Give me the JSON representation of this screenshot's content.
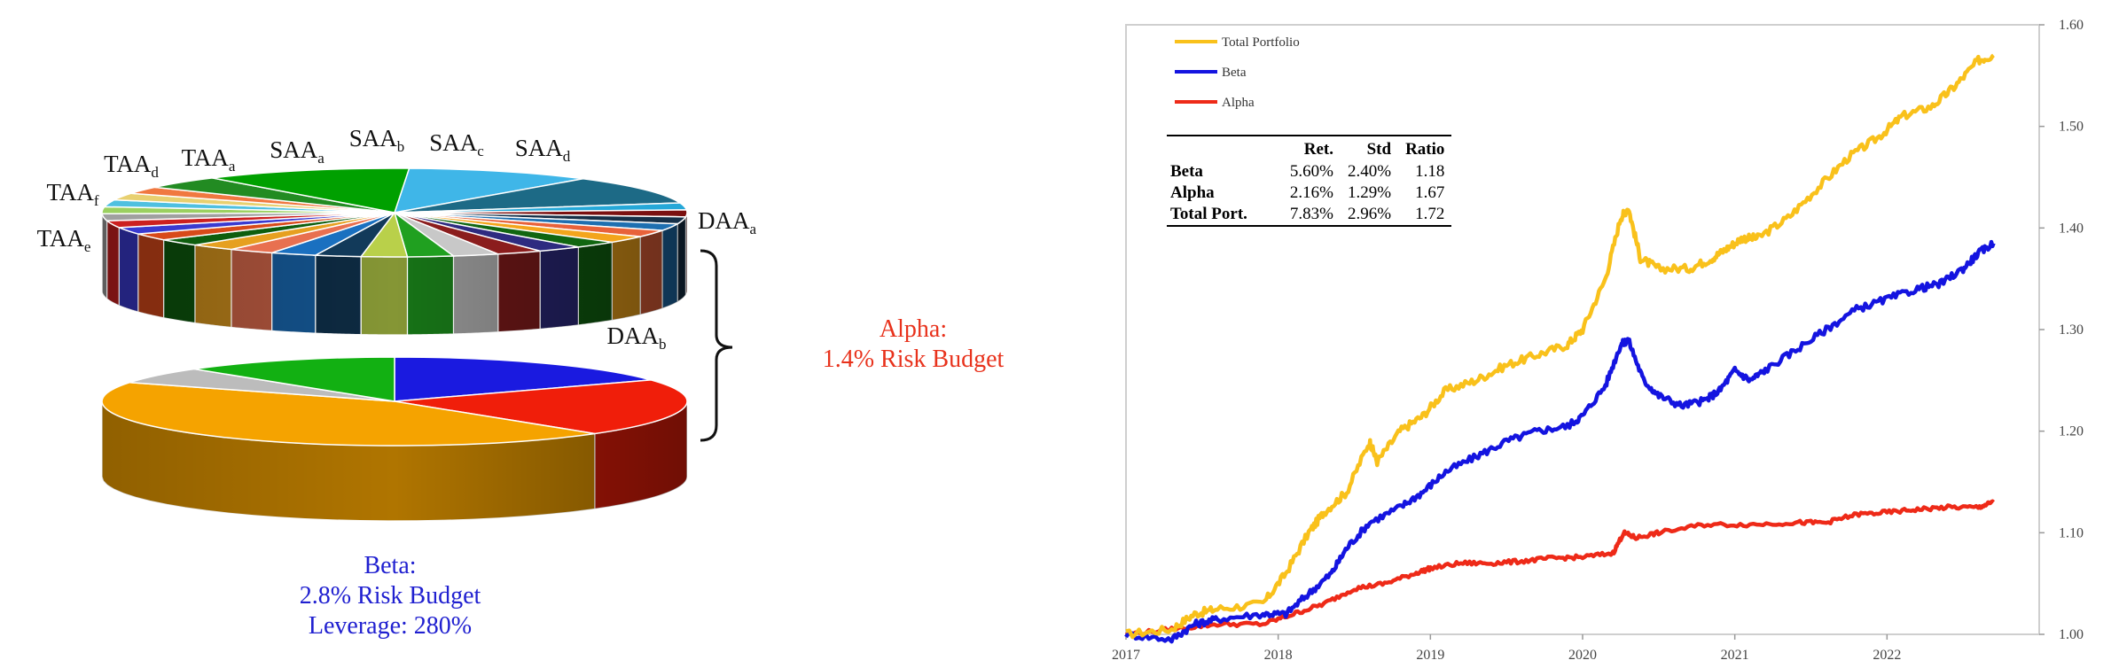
{
  "pie": {
    "top_labels": [
      {
        "base": "TAA",
        "sub": "d"
      },
      {
        "base": "TAA",
        "sub": "a"
      },
      {
        "base": "SAA",
        "sub": "a"
      },
      {
        "base": "SAA",
        "sub": "b"
      },
      {
        "base": "SAA",
        "sub": "c"
      },
      {
        "base": "SAA",
        "sub": "d"
      },
      {
        "base": "TAA",
        "sub": "f"
      },
      {
        "base": "TAA",
        "sub": "e"
      },
      {
        "base": "DAA",
        "sub": "a"
      },
      {
        "base": "DAA",
        "sub": "b"
      }
    ],
    "top_slice_colors": [
      "#3fb6e8",
      "#1d6a86",
      "#25a8d8",
      "#7b1010",
      "#163048",
      "#1e6fb0",
      "#e8623a",
      "#f3a51c",
      "#116611",
      "#2e2b80",
      "#8b1d1d",
      "#c8c8c8",
      "#20a020",
      "#b9d04a",
      "#123a5a",
      "#1a70c0",
      "#e87050",
      "#e6a020",
      "#0e5e0e",
      "#d84a1a",
      "#3a3ad0",
      "#cc2020",
      "#a0a0a0",
      "#9bd060",
      "#4fc0e0",
      "#e8d070",
      "#f07840",
      "#228b22",
      "#00a000"
    ],
    "bottom_slices": [
      {
        "name": "blue",
        "value": 17,
        "color": "#1a1ae0"
      },
      {
        "name": "red",
        "value": 21,
        "color": "#f01e0a"
      },
      {
        "name": "orange",
        "value": 44,
        "color": "#f5a300"
      },
      {
        "name": "gray",
        "value": 6,
        "color": "#bcbcbc"
      },
      {
        "name": "green",
        "value": 12,
        "color": "#12b012"
      }
    ]
  },
  "annotations": {
    "alpha_title": "Alpha:",
    "alpha_budget": "1.4% Risk Budget",
    "beta_title": "Beta:",
    "beta_budget": "2.8% Risk Budget",
    "beta_leverage": "Leverage: 280%"
  },
  "stats_table": {
    "headers": [
      "",
      "Ret.",
      "Std",
      "Ratio"
    ],
    "rows": [
      {
        "name": "Beta",
        "ret": "5.60%",
        "std": "2.40%",
        "ratio": "1.18"
      },
      {
        "name": "Alpha",
        "ret": "2.16%",
        "std": "1.29%",
        "ratio": "1.67"
      },
      {
        "name": "Total Port.",
        "ret": "7.83%",
        "std": "2.96%",
        "ratio": "1.72"
      }
    ]
  },
  "chart_data": {
    "type": "line",
    "title": "",
    "xlabel": "",
    "ylabel": "",
    "xlim": [
      2017.0,
      2023.0
    ],
    "ylim": [
      1.0,
      1.6
    ],
    "x_ticks": [
      "2017",
      "2018",
      "2019",
      "2020",
      "2021",
      "2022"
    ],
    "y_ticks": [
      "1.00",
      "1.10",
      "1.20",
      "1.30",
      "1.40",
      "1.50",
      "1.60"
    ],
    "legend": [
      "Total Portfolio",
      "Beta",
      "Alpha"
    ],
    "series": [
      {
        "name": "Total Portfolio",
        "color": "#f9c11b",
        "x": [
          2017.0,
          2017.3,
          2017.45,
          2017.6,
          2017.9,
          2018.05,
          2018.2,
          2018.3,
          2018.45,
          2018.6,
          2018.65,
          2018.8,
          2018.95,
          2019.1,
          2019.3,
          2019.5,
          2019.7,
          2019.9,
          2020.0,
          2020.15,
          2020.25,
          2020.3,
          2020.38,
          2020.5,
          2020.7,
          2020.85,
          2020.95,
          2021.05,
          2021.15,
          2021.35,
          2021.55,
          2021.75,
          2021.95,
          2022.1,
          2022.3,
          2022.45,
          2022.6,
          2022.7
        ],
        "y": [
          1.0,
          1.005,
          1.02,
          1.025,
          1.03,
          1.06,
          1.1,
          1.12,
          1.14,
          1.19,
          1.17,
          1.2,
          1.215,
          1.24,
          1.25,
          1.265,
          1.275,
          1.285,
          1.3,
          1.35,
          1.41,
          1.42,
          1.37,
          1.36,
          1.36,
          1.37,
          1.38,
          1.39,
          1.39,
          1.41,
          1.44,
          1.47,
          1.49,
          1.51,
          1.52,
          1.54,
          1.565,
          1.57
        ]
      },
      {
        "name": "Beta",
        "color": "#1414e0",
        "x": [
          2017.0,
          2017.3,
          2017.45,
          2017.6,
          2017.9,
          2018.05,
          2018.2,
          2018.35,
          2018.45,
          2018.6,
          2018.8,
          2018.95,
          2019.1,
          2019.3,
          2019.5,
          2019.7,
          2019.9,
          2020.0,
          2020.15,
          2020.25,
          2020.3,
          2020.4,
          2020.5,
          2020.65,
          2020.8,
          2020.9,
          2021.0,
          2021.1,
          2021.2,
          2021.4,
          2021.6,
          2021.8,
          2022.0,
          2022.2,
          2022.35,
          2022.5,
          2022.6,
          2022.7
        ],
        "y": [
          1.0,
          0.995,
          1.01,
          1.015,
          1.02,
          1.02,
          1.04,
          1.06,
          1.085,
          1.11,
          1.125,
          1.14,
          1.16,
          1.175,
          1.19,
          1.2,
          1.205,
          1.215,
          1.245,
          1.285,
          1.29,
          1.25,
          1.235,
          1.225,
          1.23,
          1.24,
          1.26,
          1.25,
          1.26,
          1.28,
          1.3,
          1.32,
          1.33,
          1.34,
          1.345,
          1.36,
          1.375,
          1.385
        ]
      },
      {
        "name": "Alpha",
        "color": "#ee2a18",
        "x": [
          2017.0,
          2017.3,
          2017.6,
          2017.9,
          2018.1,
          2018.3,
          2018.5,
          2018.7,
          2018.9,
          2019.0,
          2019.2,
          2019.4,
          2019.6,
          2019.8,
          2020.0,
          2020.2,
          2020.27,
          2020.35,
          2020.5,
          2020.8,
          2021.1,
          2021.4,
          2021.6,
          2021.8,
          2022.0,
          2022.2,
          2022.4,
          2022.6,
          2022.7
        ],
        "y": [
          1.0,
          1.005,
          1.01,
          1.01,
          1.02,
          1.03,
          1.045,
          1.05,
          1.06,
          1.065,
          1.07,
          1.07,
          1.072,
          1.075,
          1.076,
          1.08,
          1.1,
          1.095,
          1.1,
          1.108,
          1.108,
          1.11,
          1.11,
          1.118,
          1.12,
          1.123,
          1.125,
          1.125,
          1.13
        ]
      }
    ]
  }
}
